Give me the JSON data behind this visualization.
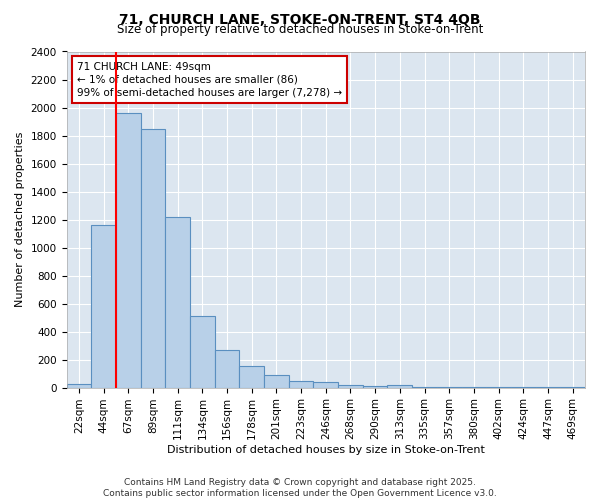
{
  "title_line1": "71, CHURCH LANE, STOKE-ON-TRENT, ST4 4QB",
  "title_line2": "Size of property relative to detached houses in Stoke-on-Trent",
  "xlabel": "Distribution of detached houses by size in Stoke-on-Trent",
  "ylabel": "Number of detached properties",
  "categories": [
    "22sqm",
    "44sqm",
    "67sqm",
    "89sqm",
    "111sqm",
    "134sqm",
    "156sqm",
    "178sqm",
    "201sqm",
    "223sqm",
    "246sqm",
    "268sqm",
    "290sqm",
    "313sqm",
    "335sqm",
    "357sqm",
    "380sqm",
    "402sqm",
    "424sqm",
    "447sqm",
    "469sqm"
  ],
  "values": [
    25,
    1160,
    1960,
    1845,
    1220,
    510,
    270,
    155,
    88,
    47,
    37,
    18,
    10,
    18,
    5,
    2,
    2,
    2,
    2,
    2,
    2
  ],
  "bar_color": "#b8d0e8",
  "bar_edge_color": "#5a8fc0",
  "ylim": [
    0,
    2400
  ],
  "yticks": [
    0,
    200,
    400,
    600,
    800,
    1000,
    1200,
    1400,
    1600,
    1800,
    2000,
    2200,
    2400
  ],
  "red_line_x": 1.5,
  "annotation_text": "71 CHURCH LANE: 49sqm\n← 1% of detached houses are smaller (86)\n99% of semi-detached houses are larger (7,278) →",
  "annotation_edge_color": "#cc0000",
  "footer_text": "Contains HM Land Registry data © Crown copyright and database right 2025.\nContains public sector information licensed under the Open Government Licence v3.0.",
  "background_color": "#ffffff",
  "plot_background_color": "#dce6f0",
  "grid_color": "#ffffff",
  "title_fontsize": 10,
  "subtitle_fontsize": 8.5,
  "ylabel_fontsize": 8,
  "xlabel_fontsize": 8,
  "tick_fontsize": 7.5,
  "footer_fontsize": 6.5
}
